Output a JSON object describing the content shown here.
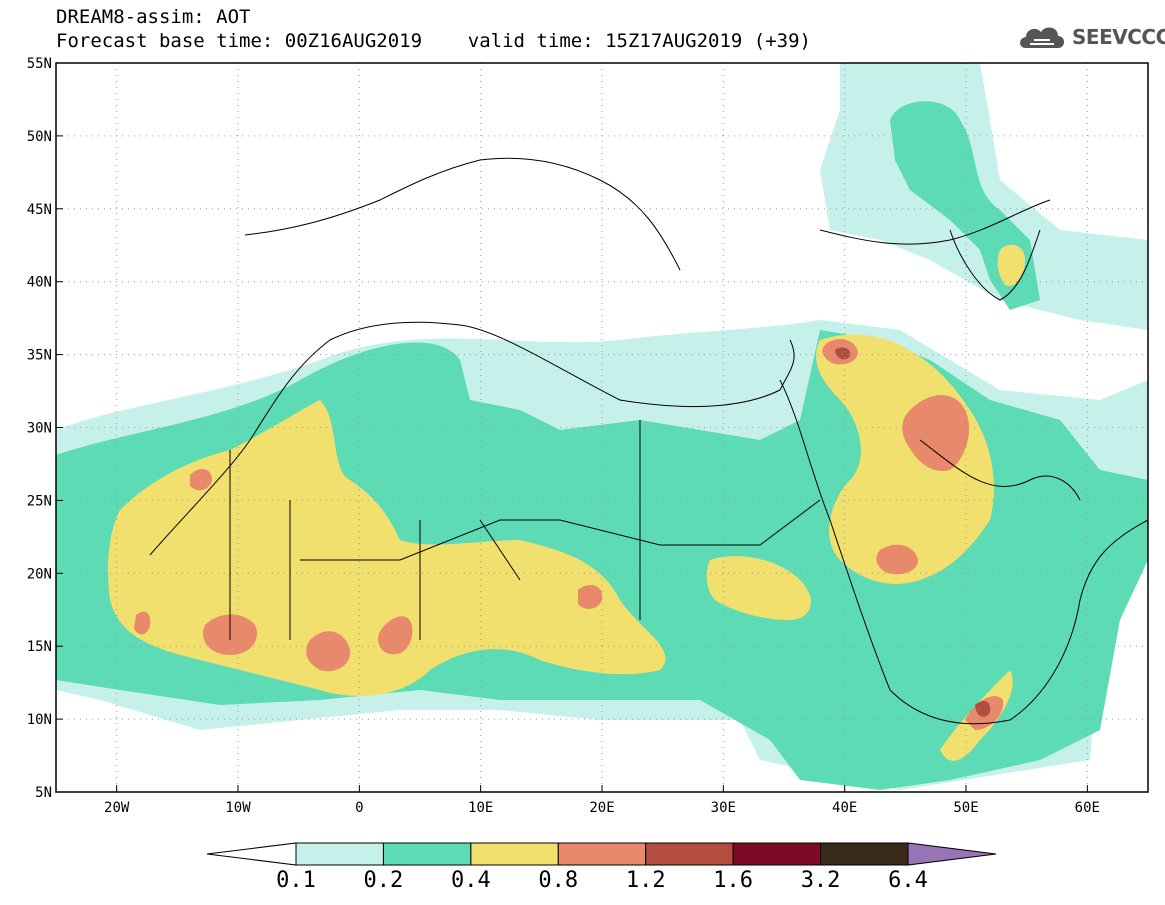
{
  "header": {
    "title_line1": "DREAM8-assim: AOT",
    "title_line2": "Forecast base time: 00Z16AUG2019    valid time: 15Z17AUG2019 (+39)"
  },
  "logo": {
    "text": "SEEVCCC",
    "icon": "cloud-icon",
    "color": "#555555"
  },
  "map": {
    "projection": "lat-lon",
    "lon_range": [
      -25,
      65
    ],
    "lat_range": [
      5,
      55
    ],
    "grid": true,
    "lon_ticks": [
      "20W",
      "10W",
      "0",
      "10E",
      "20E",
      "30E",
      "40E",
      "50E",
      "60E"
    ],
    "lat_ticks": [
      "55N",
      "50N",
      "45N",
      "40N",
      "35N",
      "30N",
      "25N",
      "20N",
      "15N",
      "10N",
      "5N"
    ]
  },
  "colorbar": {
    "levels": [
      "0.1",
      "0.2",
      "0.4",
      "0.8",
      "1.2",
      "1.6",
      "3.2",
      "6.4"
    ],
    "colors": [
      "#c6f0ea",
      "#5ddbb4",
      "#f2e06e",
      "#e8896b",
      "#b34d3f",
      "#7e0b26",
      "#3a2a1a",
      "#9775b6"
    ],
    "low_extend_color": "#ffffff"
  }
}
